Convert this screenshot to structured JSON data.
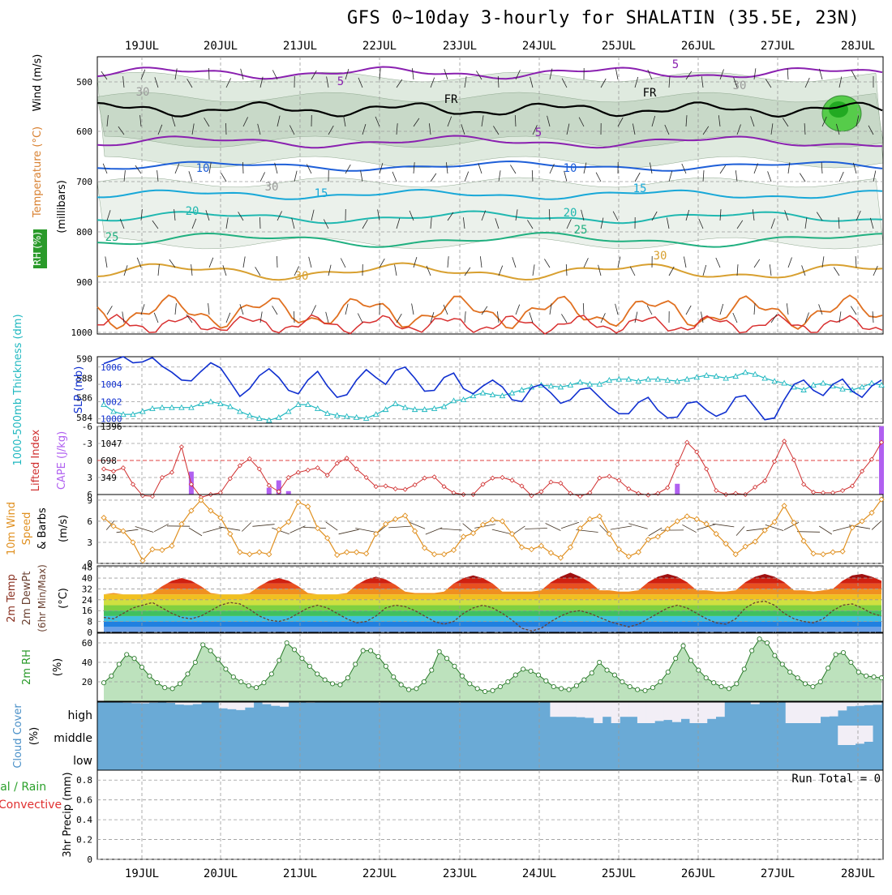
{
  "title": "GFS 0~10day 3-hourly for SHALATIN (35.5E, 23N)",
  "colors": {
    "grid": "#9a9a9a",
    "axis": "#000000",
    "slp": "#1030d0",
    "thick": "#20b8c0",
    "lifted": "#d03030",
    "cape": "#b060f0",
    "wind": "#e09020",
    "barb": "#403020",
    "rh": "#3a9a3a",
    "rhfill": "#9ee39e",
    "cloudbg": "#6aaad6",
    "cloudfill": "#f2eef6",
    "t5": "#8a20b0",
    "t10": "#1e5fd8",
    "t15": "#18a8d8",
    "t20": "#20b8b0",
    "t25": "#20b080",
    "t30": "#d8a030"
  },
  "dates": [
    "19JUL",
    "20JUL",
    "21JUL",
    "22JUL",
    "23JUL",
    "24JUL",
    "25JUL",
    "26JUL",
    "27JUL",
    "28JUL"
  ],
  "panels": {
    "upper": {
      "ylabel_wind": "Wind (m/s)",
      "ylabel_temp": "Temperature (°C)",
      "ylabel_rh": "RH (%)",
      "ylabel_mb": "(millibars)",
      "ticks": [
        "500",
        "600",
        "700",
        "800",
        "900",
        "1000"
      ],
      "contour_labels": [
        "5",
        "5",
        "5",
        "10",
        "10",
        "15",
        "15",
        "20",
        "20",
        "25",
        "25",
        "30",
        "30",
        "FR",
        "FR",
        "30",
        "30",
        "30"
      ]
    },
    "slp": {
      "ylabel_left": "1000-500mb Thickness (dm)",
      "ylabel_right": "SLP (mb)",
      "left_ticks": [
        "590",
        "588",
        "586",
        "584"
      ],
      "right_ticks": [
        "1006",
        "1004",
        "1002",
        "1000"
      ]
    },
    "li": {
      "ylabel_left": "Lifted Index",
      "ylabel_right": "CAPE (J/kg)",
      "left_ticks": [
        "-6",
        "-3",
        "0",
        "3",
        "6"
      ],
      "right_ticks": [
        "1396",
        "1047",
        "698",
        "349"
      ]
    },
    "wind": {
      "ylabel1": "10m Wind",
      "ylabel2": "Speed",
      "ylabel3": "& Barbs",
      "unit": "(m/s)",
      "ticks": [
        "9",
        "6",
        "3",
        "0"
      ]
    },
    "temp": {
      "ylabel1": "2m Temp",
      "ylabel2": "2m DewPt",
      "ylabel3": "(6hr Min/Max)",
      "unit": "(°C)",
      "ticks": [
        "48",
        "40",
        "32",
        "24",
        "16",
        "8",
        "0"
      ]
    },
    "rh2m": {
      "ylabel": "2m RH",
      "unit": "(%)",
      "ticks": [
        "60",
        "40",
        "20"
      ]
    },
    "cloud": {
      "ylabel": "Cloud Cover",
      "unit": "(%)",
      "levels": [
        "high",
        "middle",
        "low"
      ]
    },
    "precip": {
      "ylabel1": "Total / Rain",
      "ylabel2": "Convective",
      "ylabel3": "3hr Precip (mm)",
      "ticks": [
        "0.8",
        "0.6",
        "0.4",
        "0.2",
        "0"
      ],
      "run_total": "Run Total = 0"
    }
  },
  "chart_data": [
    {
      "type": "line",
      "name": "Sea level pressure / 1000-500mb thickness",
      "series": [
        {
          "name": "SLP (mb)",
          "axis": "right",
          "ylim": [
            999.5,
            1007.2
          ],
          "values": [
            1006.4,
            1006.8,
            1007.2,
            1006.5,
            1006.6,
            1007.1,
            1006.1,
            1005.4,
            1004.5,
            1004.4,
            1005.5,
            1006.5,
            1005.9,
            1004.3,
            1002.6,
            1003.5,
            1005.0,
            1005.8,
            1004.8,
            1003.3,
            1002.9,
            1004.5,
            1005.5,
            1003.8,
            1002.5,
            1002.8,
            1004.5,
            1005.7,
            1004.8,
            1004.0,
            1005.6,
            1006.0,
            1004.7,
            1003.2,
            1003.3,
            1004.8,
            1005.3,
            1003.5,
            1002.9,
            1003.8,
            1004.5,
            1003.7,
            1002.2,
            1002.0,
            1003.6,
            1004.0,
            1003.0,
            1001.8,
            1002.2,
            1003.4,
            1003.6,
            1002.5,
            1001.4,
            1000.6,
            1000.6,
            1001.9,
            1002.5,
            1001.0,
            1000.1,
            1000.2,
            1001.8,
            1002.0,
            1001.0,
            1000.3,
            1000.8,
            1002.5,
            1002.7,
            1001.3,
            999.9,
            1000.1,
            1002.2,
            1004.0,
            1004.5,
            1003.3,
            1002.7,
            1004.0,
            1004.6,
            1003.2,
            1002.5,
            1003.8,
            1004.5
          ]
        },
        {
          "name": "1000-500mb Thickness (dm)",
          "axis": "left",
          "ylim": [
            583.4,
            590.2
          ],
          "values": [
            585.3,
            584.6,
            584.3,
            584.3,
            584.6,
            584.9,
            585.0,
            585.0,
            585.0,
            585.0,
            585.4,
            585.6,
            585.4,
            585.1,
            584.6,
            584.2,
            583.9,
            583.7,
            584.0,
            584.6,
            585.3,
            585.3,
            584.9,
            584.4,
            584.2,
            584.1,
            584.0,
            583.9,
            584.3,
            584.8,
            585.4,
            585.0,
            584.8,
            584.8,
            584.9,
            585.1,
            585.7,
            585.8,
            586.2,
            586.5,
            586.3,
            586.2,
            586.5,
            586.8,
            587.1,
            587.3,
            587.2,
            587.1,
            587.3,
            587.6,
            587.4,
            587.4,
            587.8,
            587.9,
            587.9,
            587.7,
            587.9,
            587.9,
            587.8,
            587.7,
            587.9,
            588.1,
            588.3,
            588.2,
            588.0,
            588.2,
            588.6,
            588.4,
            588.0,
            587.7,
            587.5,
            587.1,
            586.8,
            587.3,
            587.5,
            587.2,
            586.9,
            586.8,
            587.1,
            587.5,
            587.3
          ]
        }
      ]
    },
    {
      "type": "line",
      "name": "Lifted Index / CAPE",
      "series": [
        {
          "name": "Lifted Index",
          "axis": "left",
          "ylim": [
            6,
            -6
          ],
          "values": [
            1.5,
            1.9,
            1.3,
            4.2,
            6.2,
            6.3,
            3.0,
            2.1,
            -2.4,
            4.2,
            6.5,
            6.0,
            5.7,
            3.2,
            0.9,
            -0.3,
            1.5,
            4.4,
            5.5,
            3.0,
            2.1,
            1.7,
            1.3,
            2.6,
            0.5,
            -0.4,
            1.5,
            3.0,
            4.6,
            4.5,
            5.0,
            5.1,
            4.3,
            3.1,
            2.9,
            4.6,
            5.7,
            6.0,
            6.0,
            4.2,
            3.1,
            3.0,
            3.5,
            4.5,
            6.2,
            5.5,
            3.8,
            4.0,
            5.8,
            6.3,
            5.7,
            3.1,
            2.8,
            3.5,
            5.0,
            5.8,
            6.1,
            5.8,
            4.8,
            0.7,
            -3.2,
            -1.5,
            1.5,
            5.3,
            6.0,
            5.8,
            6.0,
            4.7,
            3.6,
            0.2,
            -3.4,
            -0.1,
            4.2,
            5.6,
            5.7,
            5.7,
            5.3,
            4.5,
            1.9,
            -0.2,
            -3.2
          ]
        },
        {
          "name": "CAPE (J/kg)",
          "axis": "right",
          "ylim": [
            0,
            1396
          ],
          "type": "bar",
          "values": [
            0,
            0,
            0,
            0,
            0,
            0,
            0,
            0,
            0,
            470,
            0,
            0,
            0,
            0,
            0,
            0,
            0,
            140,
            290,
            70,
            0,
            0,
            0,
            0,
            0,
            0,
            0,
            0,
            0,
            0,
            0,
            0,
            0,
            0,
            0,
            0,
            0,
            0,
            0,
            0,
            0,
            0,
            0,
            0,
            0,
            0,
            0,
            0,
            0,
            0,
            0,
            0,
            0,
            0,
            0,
            0,
            0,
            0,
            0,
            220,
            0,
            0,
            0,
            0,
            0,
            0,
            0,
            0,
            0,
            0,
            0,
            0,
            0,
            0,
            0,
            0,
            0,
            0,
            0,
            0,
            1400
          ]
        }
      ]
    },
    {
      "type": "line",
      "name": "10m wind speed",
      "series": [
        {
          "name": "10m Wind Speed (m/s)",
          "ylim": [
            0,
            9.8
          ],
          "values": [
            6.5,
            5.3,
            4.6,
            3.0,
            0.4,
            2.0,
            1.9,
            2.5,
            5.6,
            7.5,
            9.0,
            7.5,
            6.5,
            4.2,
            1.6,
            1.3,
            1.6,
            1.3,
            4.8,
            5.9,
            8.7,
            8.1,
            5.0,
            3.6,
            1.2,
            1.6,
            1.6,
            1.4,
            4.2,
            5.6,
            6.3,
            6.8,
            4.6,
            2.2,
            1.3,
            1.3,
            1.9,
            3.8,
            4.3,
            5.5,
            6.2,
            6.0,
            4.2,
            2.3,
            2.0,
            2.5,
            1.5,
            0.8,
            2.3,
            5.0,
            6.3,
            6.7,
            4.2,
            2.0,
            1.0,
            1.6,
            3.4,
            3.8,
            4.9,
            6.0,
            6.7,
            6.3,
            5.6,
            4.2,
            2.8,
            1.3,
            2.4,
            3.1,
            4.7,
            5.9,
            8.2,
            5.8,
            3.2,
            1.4,
            1.3,
            1.6,
            1.7,
            5.1,
            6.0,
            7.2,
            9.1
          ]
        }
      ]
    },
    {
      "type": "area",
      "name": "2m temperature / dewpoint",
      "series": [
        {
          "name": "2m Temp (°C)",
          "ylim": [
            0,
            49
          ],
          "values": [
            28,
            29,
            28,
            28,
            28,
            29,
            34,
            38,
            40,
            38,
            34,
            29,
            28,
            28,
            28,
            29,
            34,
            38,
            40,
            38,
            34,
            29,
            28,
            28,
            28,
            29,
            35,
            39,
            41,
            39,
            35,
            30,
            29,
            29,
            29,
            30,
            36,
            40,
            42,
            40,
            36,
            30,
            30,
            30,
            30,
            31,
            37,
            41,
            44,
            41,
            37,
            31,
            31,
            30,
            30,
            31,
            37,
            41,
            43,
            41,
            37,
            31,
            31,
            30,
            30,
            31,
            37,
            41,
            43,
            41,
            37,
            31,
            31,
            30,
            31,
            32,
            38,
            42,
            43,
            41,
            38
          ]
        },
        {
          "name": "2m DewPt (°C)",
          "ylim": [
            0,
            49
          ],
          "values": [
            11,
            10,
            14,
            18,
            20,
            22,
            18,
            14,
            11,
            10,
            12,
            16,
            20,
            22,
            21,
            17,
            12,
            9,
            8,
            10,
            14,
            18,
            20,
            18,
            14,
            10,
            7,
            8,
            12,
            18,
            20,
            19,
            16,
            12,
            8,
            6,
            8,
            14,
            18,
            20,
            18,
            14,
            9,
            3,
            1,
            3,
            8,
            12,
            15,
            16,
            14,
            11,
            8,
            6,
            4,
            6,
            10,
            14,
            18,
            20,
            18,
            14,
            10,
            7,
            6,
            10,
            18,
            22,
            23,
            20,
            14,
            10,
            8,
            7,
            10,
            16,
            20,
            21,
            18,
            14,
            12
          ]
        }
      ]
    },
    {
      "type": "area",
      "name": "2m relative humidity",
      "series": [
        {
          "name": "2m RH (%)",
          "ylim": [
            0,
            70
          ],
          "values": [
            19,
            26,
            38,
            48,
            44,
            35,
            26,
            19,
            14,
            13,
            18,
            28,
            40,
            58,
            52,
            43,
            33,
            25,
            20,
            16,
            14,
            19,
            28,
            42,
            60,
            53,
            44,
            36,
            28,
            22,
            18,
            17,
            24,
            38,
            52,
            52,
            46,
            36,
            25,
            17,
            12,
            13,
            20,
            32,
            51,
            44,
            36,
            26,
            18,
            13,
            10,
            11,
            15,
            20,
            27,
            33,
            31,
            27,
            21,
            15,
            13,
            12,
            16,
            22,
            29,
            40,
            32,
            27,
            20,
            15,
            12,
            11,
            14,
            20,
            30,
            44,
            57,
            42,
            32,
            24,
            19,
            15,
            13,
            18,
            33,
            52,
            64,
            60,
            47,
            38,
            30,
            24,
            18,
            15,
            20,
            34,
            48,
            50,
            40,
            30,
            26,
            25,
            24
          ]
        }
      ]
    },
    {
      "type": "bar",
      "name": "Cloud cover",
      "series": [
        {
          "name": "high cloud (%)",
          "ylim": [
            0,
            100
          ],
          "values": [
            0,
            2,
            3,
            5,
            6,
            3,
            2,
            4,
            12,
            14,
            10,
            0,
            0,
            30,
            34,
            38,
            26,
            2,
            10,
            18,
            22,
            0,
            0,
            3,
            2,
            0,
            1,
            2,
            0,
            0,
            0,
            0,
            0,
            0,
            0,
            0,
            0,
            0,
            0,
            0,
            0,
            0,
            0,
            0,
            0,
            0,
            0,
            0,
            0,
            0,
            0,
            70,
            70,
            70,
            72,
            75,
            100,
            70,
            100,
            70,
            70,
            100,
            100,
            90,
            85,
            95,
            80,
            100,
            100,
            80,
            70,
            0,
            0,
            0,
            10,
            0,
            0,
            0,
            100,
            100,
            100,
            100,
            70,
            68,
            40,
            20,
            18,
            15,
            13
          ]
        },
        {
          "name": "middle cloud (%)",
          "ylim": [
            0,
            100
          ],
          "values": [
            0,
            0,
            0,
            0,
            0,
            0,
            0,
            0,
            0,
            0,
            0,
            0,
            0,
            0,
            0,
            0,
            0,
            0,
            0,
            0,
            0,
            0,
            0,
            0,
            0,
            0,
            0,
            0,
            0,
            0,
            0,
            0,
            0,
            0,
            0,
            0,
            0,
            0,
            0,
            0,
            0,
            0,
            0,
            0,
            0,
            0,
            0,
            0,
            0,
            0,
            0,
            0,
            0,
            0,
            0,
            0,
            0,
            0,
            0,
            0,
            0,
            0,
            0,
            0,
            0,
            0,
            0,
            0,
            0,
            0,
            0,
            0,
            0,
            0,
            0,
            0,
            0,
            0,
            0,
            0,
            0,
            0,
            0,
            0,
            30,
            30,
            28,
            25,
            0
          ]
        }
      ]
    },
    {
      "type": "bar",
      "name": "3hr precipitation",
      "series": [
        {
          "name": "3hr Precip (mm)",
          "ylim": [
            0,
            0.9
          ],
          "values": [
            0
          ]
        }
      ]
    }
  ]
}
